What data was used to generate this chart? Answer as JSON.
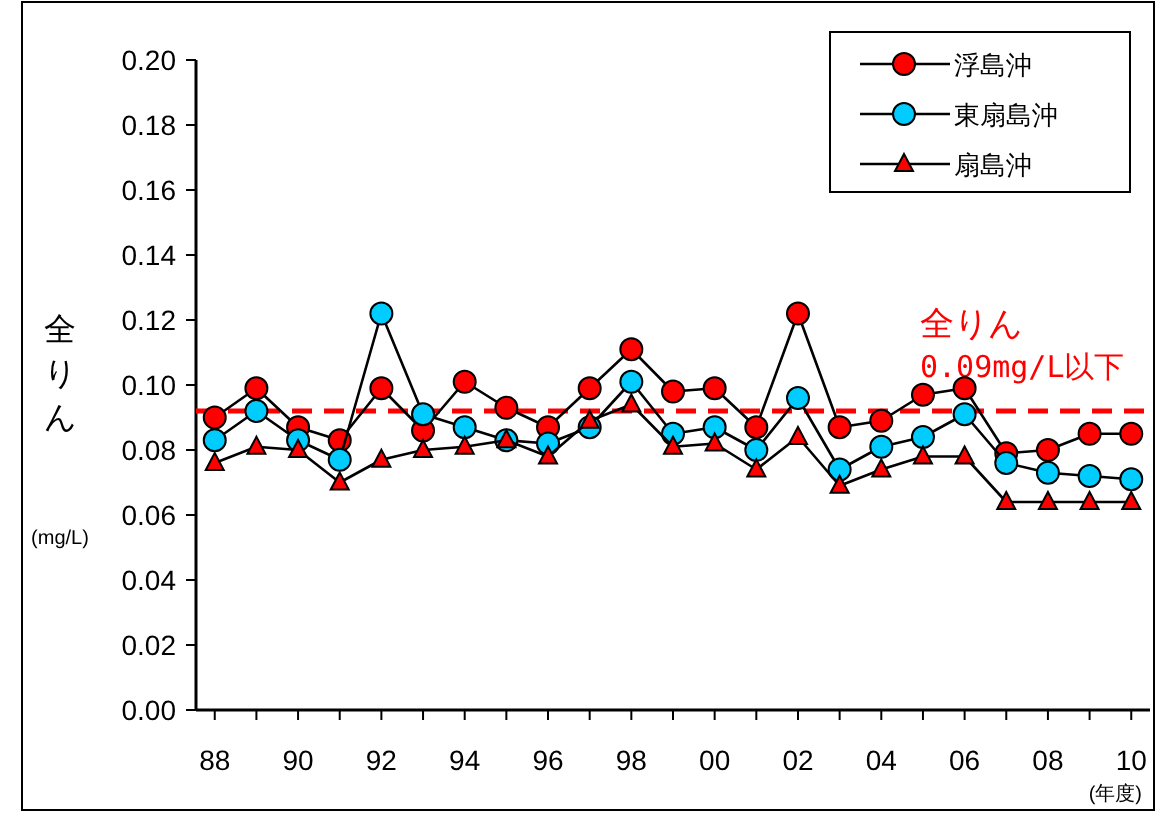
{
  "chart_data": {
    "type": "line",
    "ylabel": "全りん",
    "xlabel": "(年度)",
    "annotations": [
      "(mg/L)"
    ],
    "categories": [
      "88",
      null,
      "90",
      null,
      "92",
      null,
      "94",
      null,
      "96",
      null,
      "98",
      null,
      "00",
      null,
      "02",
      null,
      "04",
      null,
      "06",
      null,
      "08",
      null,
      "10"
    ],
    "ylim": [
      0,
      0.2
    ],
    "yticks": [
      {
        "value": 0,
        "label": "0.00"
      },
      {
        "value": 0.02,
        "label": "0.02"
      },
      {
        "value": 0.04,
        "label": "0.04"
      },
      {
        "value": 0.06,
        "label": "0.06"
      },
      {
        "value": 0.08,
        "label": "0.08"
      },
      {
        "value": 0.1,
        "label": "0.10"
      },
      {
        "value": 0.12,
        "label": "0.12"
      },
      {
        "value": 0.14,
        "label": "0.14"
      },
      {
        "value": 0.16,
        "label": "0.16"
      },
      {
        "value": 0.18,
        "label": "0.18"
      },
      {
        "value": 0.2,
        "label": "0.20"
      }
    ],
    "legend": "top right",
    "grid": false,
    "series": [
      {
        "name": "浮島沖",
        "color": "#ff0000",
        "marker": "circle",
        "values": [
          0.09,
          0.099,
          0.087,
          0.083,
          0.099,
          0.086,
          0.101,
          0.093,
          0.087,
          0.099,
          0.111,
          0.098,
          0.099,
          0.087,
          0.122,
          0.087,
          0.089,
          0.097,
          0.099,
          0.079,
          0.08,
          0.085,
          0.085
        ]
      },
      {
        "name": "東扇島沖",
        "color": "#00ccff",
        "marker": "circle",
        "values": [
          0.083,
          0.092,
          0.083,
          0.077,
          0.122,
          0.091,
          0.087,
          0.083,
          0.082,
          0.087,
          0.101,
          0.085,
          0.087,
          0.08,
          0.096,
          0.074,
          0.081,
          0.084,
          0.091,
          0.076,
          0.073,
          0.072,
          0.071
        ]
      },
      {
        "name": "扇島沖",
        "color": "#ff0000",
        "marker": "triangle",
        "values": [
          0.076,
          0.081,
          0.08,
          0.07,
          0.077,
          0.08,
          0.081,
          0.083,
          0.078,
          0.089,
          0.094,
          0.081,
          0.082,
          0.074,
          0.084,
          0.069,
          0.074,
          0.078,
          0.078,
          0.064,
          0.064,
          0.064,
          0.064
        ]
      }
    ],
    "ref_lines": [
      {
        "axis": "y",
        "value": 0.092,
        "label": "全りん\n0.09mg/L以下",
        "color": "#ff0000",
        "line_style": "dashed"
      }
    ]
  }
}
